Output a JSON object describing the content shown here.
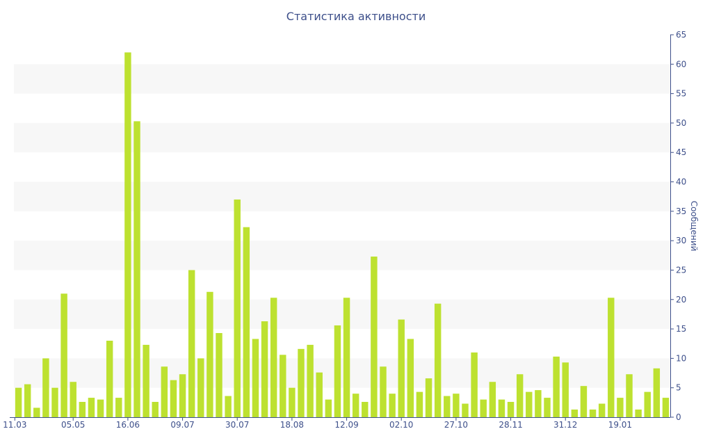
{
  "chart_data": {
    "type": "bar",
    "title": "Статистика активности",
    "ylabel": "Сообщений",
    "ylim": [
      0,
      65
    ],
    "y_ticks": [
      0,
      5,
      10,
      15,
      20,
      25,
      30,
      35,
      40,
      45,
      50,
      55,
      60,
      65
    ],
    "x_tick_labels": [
      {
        "label": "11.03",
        "index": 0
      },
      {
        "label": "05.05",
        "index": 6.5
      },
      {
        "label": "16.06",
        "index": 12.5
      },
      {
        "label": "09.07",
        "index": 18.5
      },
      {
        "label": "30.07",
        "index": 24.5
      },
      {
        "label": "18.08",
        "index": 30.5
      },
      {
        "label": "12.09",
        "index": 36.5
      },
      {
        "label": "02.10",
        "index": 42.5
      },
      {
        "label": "27.10",
        "index": 48.5
      },
      {
        "label": "28.11",
        "index": 54.5
      },
      {
        "label": "31.12",
        "index": 60.5
      },
      {
        "label": "19.01",
        "index": 66.5
      }
    ],
    "grid": "alternating horizontal bands",
    "y_axis_position": "right",
    "bar_color": "#bde130",
    "values": [
      5,
      5.6,
      1.6,
      10,
      5,
      21,
      6,
      2.6,
      3.3,
      3,
      13,
      3.3,
      62,
      50.3,
      12.3,
      2.6,
      8.6,
      6.3,
      7.3,
      25,
      10,
      21.3,
      14.3,
      3.6,
      37,
      32.3,
      13.3,
      16.3,
      20.3,
      10.6,
      5,
      11.6,
      12.3,
      7.6,
      3,
      15.6,
      20.3,
      4,
      2.6,
      27.3,
      8.6,
      4,
      16.6,
      13.3,
      4.3,
      6.6,
      19.3,
      3.6,
      4,
      2.3,
      11,
      3,
      6,
      3,
      2.6,
      7.3,
      4.3,
      4.6,
      3.3,
      10.3,
      9.3,
      1.3,
      5.3,
      1.3,
      2.3,
      20.3,
      3.3,
      7.3,
      1.3,
      4.3,
      8.3,
      3.3
    ]
  }
}
